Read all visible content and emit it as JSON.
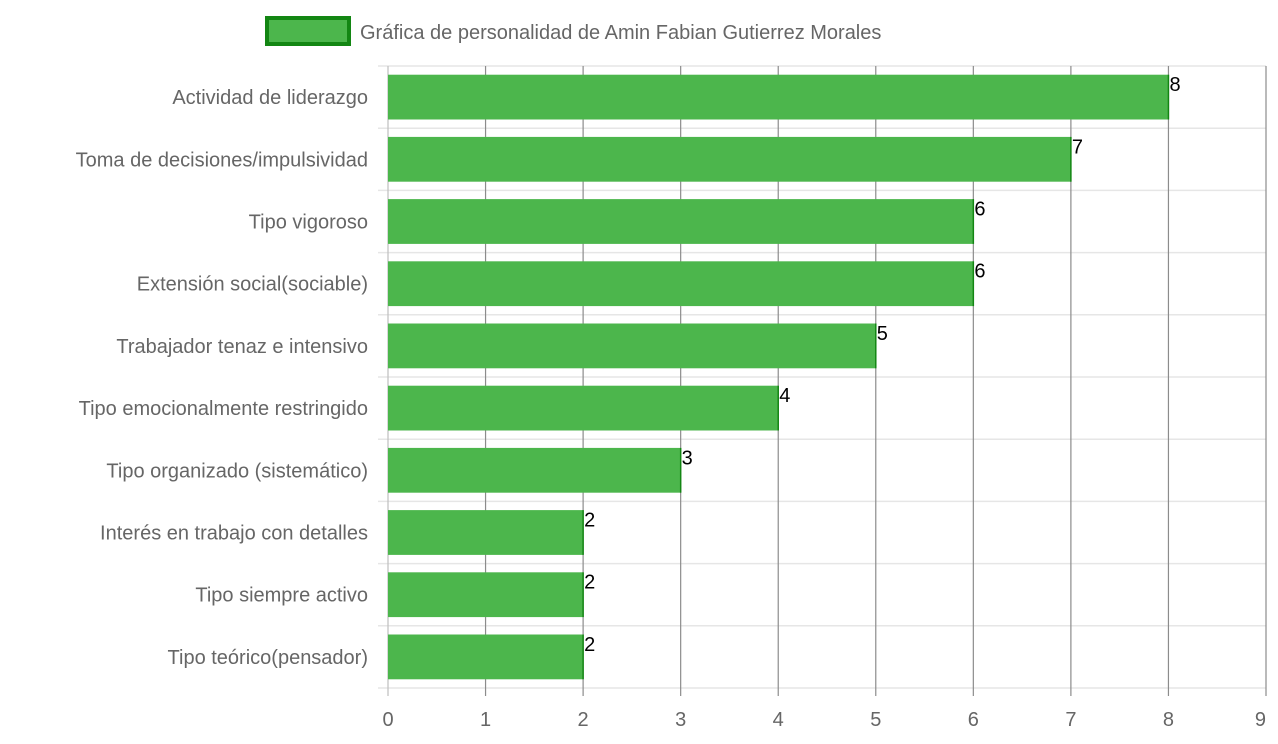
{
  "chart_data": {
    "type": "bar",
    "orientation": "horizontal",
    "legend": {
      "label": "Gráfica de personalidad de Amin Fabian Gutierrez Morales",
      "position": "top"
    },
    "categories": [
      "Actividad de liderazgo",
      "Toma de decisiones/impulsividad",
      "Tipo vigoroso",
      "Extensión social(sociable)",
      "Trabajador tenaz e intensivo",
      "Tipo emocionalmente restringido",
      "Tipo organizado (sistemático)",
      "Interés en trabajo con detalles",
      "Tipo siempre activo",
      "Tipo teórico(pensador)"
    ],
    "series": [
      {
        "name": "Gráfica de personalidad de Amin Fabian Gutierrez Morales",
        "values": [
          8,
          7,
          6,
          6,
          5,
          4,
          3,
          2,
          2,
          2
        ]
      }
    ],
    "xlim": [
      0,
      9
    ],
    "x_ticks": [
      "0",
      "1",
      "2",
      "3",
      "4",
      "5",
      "6",
      "7",
      "8",
      "9"
    ],
    "grid": true,
    "colors": {
      "bar_fill": "#4cb64c",
      "bar_border": "#138613",
      "grid": "#e6e6e6",
      "grid_vertical": "#8c8c8c",
      "text": "#666666",
      "data_label": "#000000"
    }
  }
}
